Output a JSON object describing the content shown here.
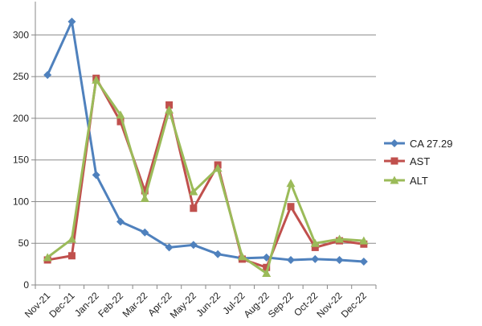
{
  "chart_data": {
    "type": "line",
    "categories": [
      "Nov-21",
      "Dec-21",
      "Jan-22",
      "Feb-22",
      "Mar-22",
      "Apr-22",
      "May-22",
      "Jun-22",
      "Jul-22",
      "Aug-22",
      "Sep-22",
      "Oct-22",
      "Nov-22",
      "Dec-22"
    ],
    "ylim": [
      0,
      340
    ],
    "yticks": [
      0,
      50,
      100,
      150,
      200,
      250,
      300
    ],
    "grid": true,
    "legend_position": "right",
    "series": [
      {
        "name": "CA 27.29",
        "color": "#4f81bd",
        "marker": "diamond",
        "values": [
          252,
          316,
          132,
          76,
          63,
          45,
          48,
          37,
          32,
          33,
          30,
          31,
          30,
          28
        ]
      },
      {
        "name": "AST",
        "color": "#c0504d",
        "marker": "square",
        "values": [
          30,
          35,
          248,
          196,
          113,
          216,
          92,
          144,
          31,
          21,
          94,
          45,
          53,
          49
        ]
      },
      {
        "name": "ALT",
        "color": "#9bbb59",
        "marker": "triangle",
        "values": [
          33,
          55,
          246,
          204,
          104,
          210,
          112,
          140,
          34,
          14,
          122,
          50,
          55,
          53
        ]
      }
    ]
  }
}
